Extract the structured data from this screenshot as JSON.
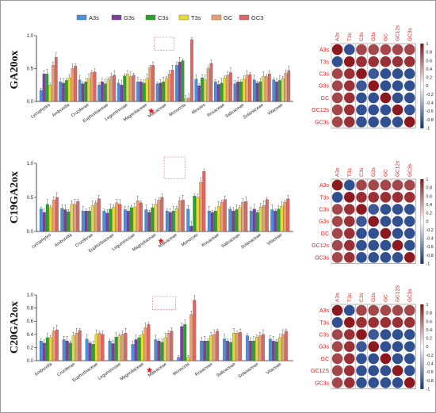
{
  "legend": [
    {
      "name": "A3s",
      "color": "#4a90d9"
    },
    {
      "name": "G3s",
      "color": "#7b3fa0"
    },
    {
      "name": "C3s",
      "color": "#2ca02c"
    },
    {
      "name": "T3s",
      "color": "#e8d93a"
    },
    {
      "name": "GC",
      "color": "#e8a070"
    },
    {
      "name": "GC3",
      "color": "#e06666"
    }
  ],
  "chart_data": [
    {
      "type": "bar",
      "panel_label": "GA20ox",
      "ylim": [
        0,
        1.0
      ],
      "yticks": [
        "0.0",
        "0.5",
        "1.0"
      ],
      "categories": [
        "Lycophytes",
        "Amborella",
        "Cruciferae",
        "Euphorbiaceae",
        "Leguminosae",
        "Magnoliaceae",
        "Malvaceae",
        "Monocots",
        "Mosses",
        "Rosaceae",
        "Salicaceae",
        "Solanaceae",
        "Vitaceae"
      ],
      "series": [
        {
          "name": "A3s",
          "values": [
            0.17,
            0.3,
            0.33,
            0.25,
            0.28,
            0.3,
            0.27,
            0.55,
            0.34,
            0.3,
            0.27,
            0.33,
            0.33
          ]
        },
        {
          "name": "G3s",
          "values": [
            0.42,
            0.28,
            0.27,
            0.3,
            0.25,
            0.3,
            0.28,
            0.6,
            0.24,
            0.26,
            0.3,
            0.28,
            0.3
          ]
        },
        {
          "name": "C3s",
          "values": [
            0.42,
            0.32,
            0.3,
            0.27,
            0.39,
            0.28,
            0.3,
            0.62,
            0.36,
            0.28,
            0.3,
            0.3,
            0.32
          ]
        },
        {
          "name": "T3s",
          "values": [
            0.25,
            0.36,
            0.35,
            0.33,
            0.42,
            0.35,
            0.35,
            0.04,
            0.33,
            0.36,
            0.34,
            0.38,
            0.35
          ]
        },
        {
          "name": "GC",
          "values": [
            0.55,
            0.5,
            0.44,
            0.38,
            0.38,
            0.52,
            0.42,
            0.05,
            0.5,
            0.4,
            0.4,
            0.38,
            0.43
          ]
        },
        {
          "name": "GC3",
          "values": [
            0.67,
            0.54,
            0.45,
            0.4,
            0.4,
            0.55,
            0.48,
            0.94,
            0.58,
            0.44,
            0.41,
            0.42,
            0.47
          ]
        }
      ],
      "highlight_category": "Malvaceae"
    },
    {
      "type": "bar",
      "panel_label": "C19GA2ox",
      "ylim": [
        0,
        1.0
      ],
      "yticks": [
        "0.0",
        "0.5",
        "1.0"
      ],
      "categories": [
        "Lycophytes",
        "Amborella",
        "Cruciferae",
        "Euphorbiaceae",
        "Leguminosae",
        "Magnoliaceae",
        "Malvaceae",
        "Monocots",
        "Rosaceae",
        "Salicaceae",
        "Solanaceae",
        "Vitaceae"
      ],
      "series": [
        {
          "name": "A3s",
          "values": [
            0.33,
            0.34,
            0.3,
            0.3,
            0.32,
            0.32,
            0.3,
            0.33,
            0.3,
            0.33,
            0.3,
            0.32
          ]
        },
        {
          "name": "G3s",
          "values": [
            0.28,
            0.32,
            0.3,
            0.27,
            0.3,
            0.28,
            0.28,
            0.08,
            0.28,
            0.3,
            0.33,
            0.3
          ]
        },
        {
          "name": "C3s",
          "values": [
            0.4,
            0.29,
            0.3,
            0.33,
            0.35,
            0.35,
            0.3,
            0.52,
            0.3,
            0.32,
            0.28,
            0.33
          ]
        },
        {
          "name": "T3s",
          "values": [
            0.35,
            0.4,
            0.38,
            0.36,
            0.36,
            0.4,
            0.34,
            0.5,
            0.37,
            0.35,
            0.36,
            0.37
          ]
        },
        {
          "name": "GC",
          "values": [
            0.46,
            0.4,
            0.42,
            0.42,
            0.45,
            0.46,
            0.45,
            0.72,
            0.43,
            0.43,
            0.38,
            0.43
          ]
        },
        {
          "name": "GC3",
          "values": [
            0.5,
            0.44,
            0.48,
            0.4,
            0.42,
            0.5,
            0.46,
            0.88,
            0.47,
            0.44,
            0.47,
            0.48
          ]
        }
      ],
      "highlight_category": "Malvaceae"
    },
    {
      "type": "bar",
      "panel_label": "C20GA2ox",
      "ylim": [
        0,
        1.0
      ],
      "yticks": [
        "0.0",
        "0.2",
        "0.4",
        "0.6",
        "0.8",
        "1.0"
      ],
      "categories": [
        "Amborella",
        "Cruciferae",
        "Euphorbiaceae",
        "Leguminosae",
        "Magnoliaceae",
        "Malvaceae",
        "Monocots",
        "Rosaceae",
        "Salicaceae",
        "Solanaceae",
        "Vitaceae"
      ],
      "series": [
        {
          "name": "A3s",
          "values": [
            0.3,
            0.32,
            0.33,
            0.3,
            0.25,
            0.32,
            0.05,
            0.3,
            0.33,
            0.38,
            0.33
          ]
        },
        {
          "name": "G3s",
          "values": [
            0.27,
            0.3,
            0.27,
            0.26,
            0.32,
            0.3,
            0.52,
            0.3,
            0.3,
            0.3,
            0.3
          ]
        },
        {
          "name": "C3s",
          "values": [
            0.35,
            0.27,
            0.25,
            0.36,
            0.35,
            0.28,
            0.55,
            0.3,
            0.28,
            0.3,
            0.29
          ]
        },
        {
          "name": "T3s",
          "values": [
            0.35,
            0.38,
            0.4,
            0.38,
            0.4,
            0.35,
            0.05,
            0.38,
            0.42,
            0.36,
            0.35
          ]
        },
        {
          "name": "GC",
          "values": [
            0.45,
            0.42,
            0.42,
            0.4,
            0.5,
            0.42,
            0.7,
            0.4,
            0.42,
            0.38,
            0.4
          ]
        },
        {
          "name": "GC3",
          "values": [
            0.47,
            0.46,
            0.4,
            0.42,
            0.55,
            0.45,
            0.92,
            0.45,
            0.43,
            0.4,
            0.45
          ]
        }
      ],
      "highlight_category": "Malvaceae"
    }
  ],
  "correlograms": [
    {
      "cols": [
        "A3s",
        "T3s",
        "C3s",
        "G3s",
        "GC",
        "GC12s",
        "GC3s"
      ],
      "rows": [
        "A3s",
        "T3s",
        "C3s",
        "G3s",
        "GC",
        "GC12s",
        "GC3s"
      ],
      "matrix": [
        [
          1,
          -0.9,
          0.8,
          0.8,
          0.8,
          0.8,
          0.8
        ],
        [
          -0.9,
          1,
          0.9,
          0.9,
          0.9,
          0.9,
          0.9
        ],
        [
          0.8,
          0.9,
          1,
          -0.85,
          -0.9,
          -0.9,
          -0.9
        ],
        [
          0.8,
          0.9,
          -0.85,
          1,
          -0.9,
          -0.9,
          -0.9
        ],
        [
          0.8,
          0.9,
          -0.9,
          -0.9,
          1,
          -0.9,
          -0.9
        ],
        [
          0.8,
          0.9,
          -0.9,
          -0.9,
          -0.9,
          1,
          -0.9
        ],
        [
          0.8,
          0.9,
          -0.9,
          -0.9,
          -0.9,
          -0.9,
          1
        ]
      ]
    },
    {
      "cols": [
        "A3s",
        "T3s",
        "C3s",
        "G3s",
        "GC",
        "GC12s",
        "GC3s"
      ],
      "rows": [
        "A3s",
        "T3s",
        "C3s",
        "G3s",
        "GC",
        "GC12s",
        "GC3s"
      ],
      "matrix": [
        [
          1,
          -0.9,
          0.8,
          0.8,
          0.8,
          0.8,
          0.8
        ],
        [
          -0.9,
          1,
          0.9,
          0.9,
          0.9,
          0.9,
          0.9
        ],
        [
          0.8,
          0.9,
          1,
          -0.85,
          -0.9,
          -0.9,
          -0.9
        ],
        [
          0.8,
          0.9,
          -0.85,
          1,
          -0.9,
          -0.9,
          -0.9
        ],
        [
          0.8,
          0.9,
          -0.9,
          -0.9,
          1,
          -0.9,
          -0.9
        ],
        [
          0.8,
          0.9,
          -0.9,
          -0.9,
          -0.9,
          1,
          -0.9
        ],
        [
          0.8,
          0.9,
          -0.9,
          -0.9,
          -0.9,
          -0.9,
          1
        ]
      ]
    },
    {
      "cols": [
        "A3s",
        "T3s",
        "C3s",
        "G3s",
        "GC",
        "GC12S",
        "GC3s"
      ],
      "rows": [
        "A3s",
        "T3s",
        "C3s",
        "G3s",
        "GC",
        "GC12S",
        "GC3s"
      ],
      "matrix": [
        [
          1,
          -0.9,
          0.8,
          0.8,
          0.8,
          0.8,
          0.8
        ],
        [
          -0.9,
          1,
          0.9,
          0.9,
          0.9,
          0.9,
          0.9
        ],
        [
          0.8,
          0.9,
          1,
          -0.85,
          -0.9,
          -0.9,
          -0.9
        ],
        [
          0.8,
          0.9,
          -0.85,
          1,
          -0.9,
          -0.9,
          -0.9
        ],
        [
          0.8,
          0.9,
          -0.9,
          -0.9,
          1,
          -0.9,
          -0.9
        ],
        [
          0.8,
          0.9,
          -0.9,
          -0.9,
          -0.9,
          1,
          -0.9
        ],
        [
          0.8,
          0.9,
          -0.9,
          -0.9,
          -0.9,
          -0.9,
          1
        ]
      ]
    }
  ],
  "colorbar_ticks": [
    "1",
    "0.8",
    "0.6",
    "0.4",
    "0.2",
    "0",
    "-0.2",
    "-0.4",
    "-0.6",
    "-0.8",
    "-1"
  ]
}
